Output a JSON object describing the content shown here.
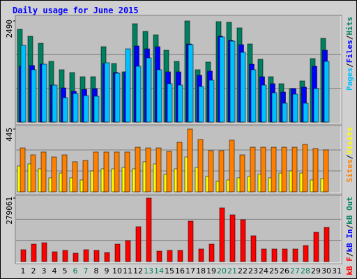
{
  "chart_data": [
    {
      "type": "bar",
      "title": "Daily usage for June 2015",
      "legend_separator": "/",
      "grid": true,
      "ylim": [
        0,
        2490
      ],
      "yticks": [
        2490
      ],
      "series": [
        {
          "name": "Pages",
          "color": "#00c0ff",
          "values": [
            1889,
            1288,
            1425,
            910,
            601,
            704,
            652,
            635,
            1460,
            1202,
            1803,
            1374,
            1580,
            1288,
            944,
            910,
            1906,
            876,
            1030,
            2095,
            1992,
            1717,
            1288,
            910,
            721,
            464,
            687,
            464,
            824,
            1494,
            0
          ]
        },
        {
          "name": "Files",
          "color": "#0000ff",
          "values": [
            1374,
            1391,
            1425,
            910,
            841,
            756,
            807,
            824,
            1442,
            1219,
            1236,
            1872,
            1803,
            1855,
            1236,
            1236,
            1923,
            1151,
            1254,
            2112,
            2009,
            1906,
            1425,
            1116,
            944,
            738,
            824,
            859,
            1374,
            1769,
            0
          ]
        },
        {
          "name": "Hits",
          "color": "#008060",
          "values": [
            2284,
            2112,
            1940,
            1494,
            1288,
            1219,
            1116,
            1116,
            1855,
            1442,
            1236,
            2421,
            2232,
            2147,
            1769,
            1494,
            2490,
            1288,
            1477,
            2473,
            2456,
            2318,
            1923,
            1546,
            1116,
            944,
            824,
            1013,
            1563,
            2061,
            0
          ]
        }
      ]
    },
    {
      "type": "bar",
      "legend_separator": "/",
      "grid": true,
      "ylim": [
        0,
        445
      ],
      "yticks": [
        445
      ],
      "series": [
        {
          "name": "Sites",
          "color": "#ff8000",
          "values": [
            311,
            262,
            282,
            247,
            262,
            213,
            222,
            282,
            282,
            282,
            282,
            316,
            311,
            311,
            287,
            351,
            445,
            371,
            292,
            292,
            366,
            262,
            316,
            316,
            316,
            316,
            316,
            336,
            307,
            297,
            0
          ]
        },
        {
          "name": "Visits",
          "color": "#ffff00",
          "values": [
            183,
            198,
            163,
            99,
            133,
            99,
            84,
            148,
            163,
            163,
            173,
            163,
            213,
            198,
            124,
            163,
            247,
            173,
            109,
            74,
            84,
            99,
            109,
            124,
            99,
            133,
            148,
            133,
            84,
            94,
            0
          ]
        }
      ]
    },
    {
      "type": "bar",
      "legend_separator": "/",
      "grid": true,
      "ylim": [
        0,
        279061
      ],
      "yticks": [
        279061
      ],
      "categories": [
        "1",
        "2",
        "3",
        "4",
        "5",
        "6",
        "7",
        "8",
        "9",
        "10",
        "11",
        "12",
        "13",
        "14",
        "15",
        "16",
        "17",
        "18",
        "19",
        "20",
        "21",
        "22",
        "23",
        "24",
        "25",
        "26",
        "27",
        "28",
        "29",
        "30",
        "31"
      ],
      "category_colors": [
        "#000000",
        "#000000",
        "#000000",
        "#000000",
        "#000000",
        "#008060",
        "#008060",
        "#000000",
        "#000000",
        "#000000",
        "#000000",
        "#000000",
        "#008060",
        "#008060",
        "#000000",
        "#000000",
        "#000000",
        "#000000",
        "#000000",
        "#008060",
        "#008060",
        "#000000",
        "#000000",
        "#000000",
        "#000000",
        "#000000",
        "#008060",
        "#008060",
        "#000000",
        "#000000",
        "#000000"
      ],
      "series": [
        {
          "name": "kB F",
          "color": "#ff0000",
          "values": [
            52132,
            76665,
            82798,
            42932,
            49066,
            36799,
            52132,
            49066,
            39866,
            76665,
            91998,
            153330,
            279061,
            45999,
            49066,
            49066,
            177863,
            55199,
            76665,
            236128,
            205462,
            183996,
            113464,
            55199,
            55199,
            55199,
            55199,
            70532,
            128797,
            150263,
            0
          ]
        },
        {
          "name": "kB In",
          "color": "#0000ff",
          "values": [
            0,
            0,
            0,
            0,
            0,
            0,
            0,
            0,
            0,
            0,
            0,
            0,
            0,
            0,
            0,
            0,
            0,
            0,
            0,
            0,
            0,
            0,
            0,
            0,
            0,
            0,
            0,
            0,
            0,
            0,
            0
          ]
        },
        {
          "name": "kB Out",
          "color": "#008060",
          "values": [
            0,
            0,
            0,
            0,
            0,
            0,
            0,
            0,
            0,
            0,
            0,
            0,
            0,
            0,
            0,
            0,
            0,
            0,
            0,
            0,
            0,
            0,
            0,
            0,
            0,
            0,
            0,
            0,
            0,
            0,
            0
          ]
        }
      ]
    }
  ]
}
